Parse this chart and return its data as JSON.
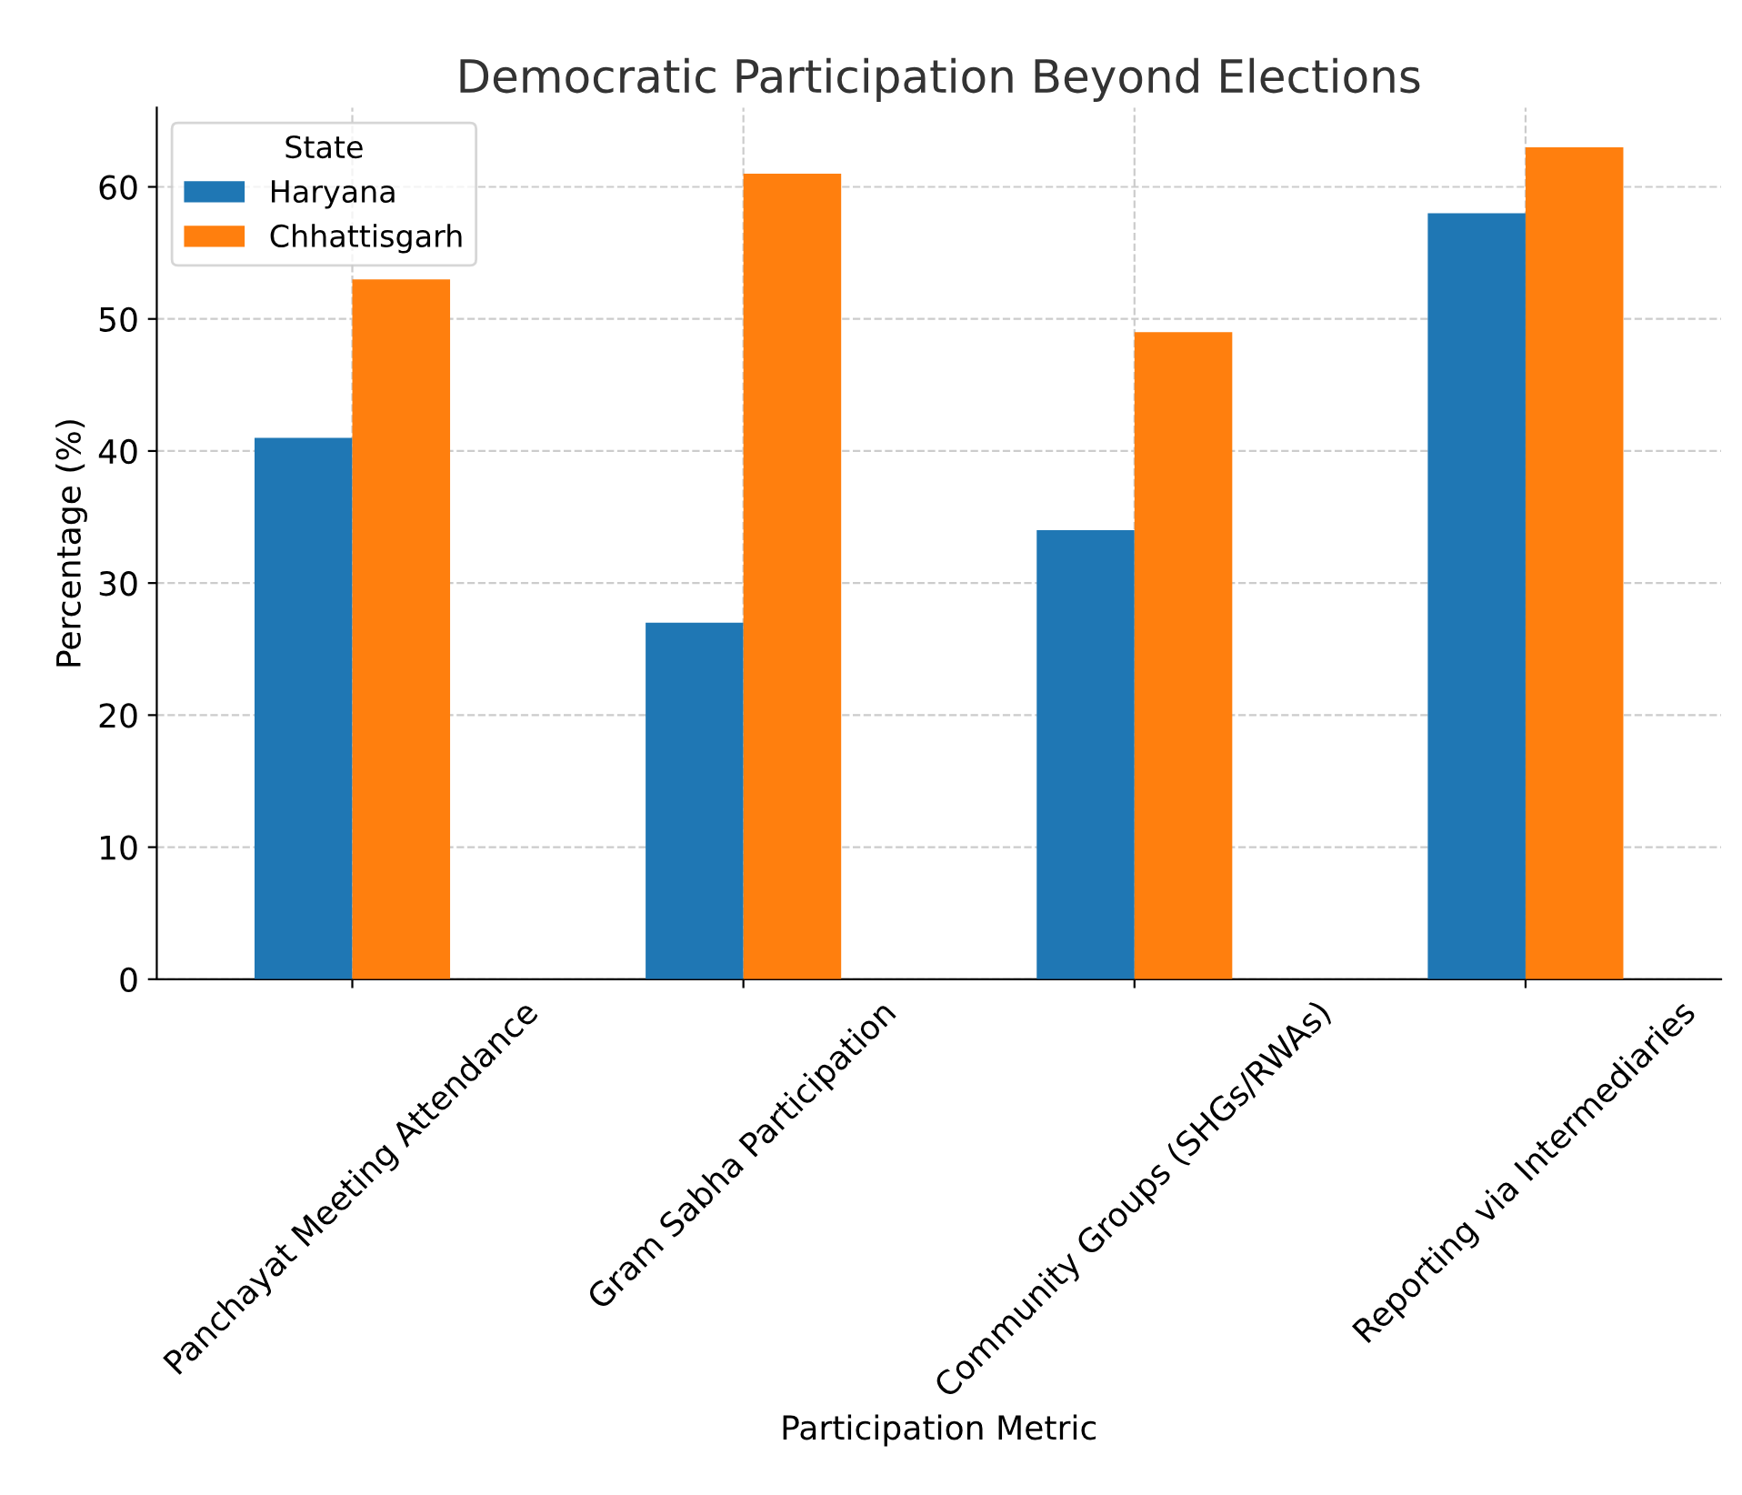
{
  "chart_data": {
    "type": "bar",
    "title": "Democratic Participation Beyond Elections",
    "xlabel": "Participation Metric",
    "ylabel": "Percentage (%)",
    "legend_title": "State",
    "categories": [
      "Panchayat Meeting Attendance",
      "Gram Sabha Participation",
      "Community Groups (SHGs/RWAs)",
      "Reporting via Intermediaries"
    ],
    "series": [
      {
        "name": "Haryana",
        "color": "#1f77b4",
        "values": [
          41,
          27,
          34,
          58
        ]
      },
      {
        "name": "Chhattisgarh",
        "color": "#ff7f0e",
        "values": [
          53,
          61,
          49,
          63
        ]
      }
    ],
    "ylim": [
      0,
      66
    ],
    "yticks": [
      0,
      10,
      20,
      30,
      40,
      50,
      60
    ],
    "grid": true,
    "legend": "top left"
  }
}
